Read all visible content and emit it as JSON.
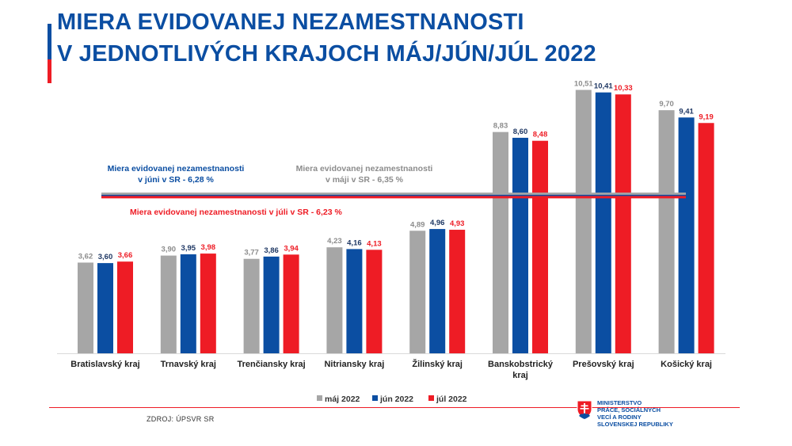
{
  "title": {
    "line1": "MIERA EVIDOVANEJ NEZAMESTNANOSTI",
    "line2": "V JEDNOTLIVÝCH KRAJOCH MÁJ/JÚN/JÚL 2022"
  },
  "colors": {
    "may": "#a6a6a6",
    "june": "#0b4ea2",
    "july": "#ee1c25",
    "may_label": "#8c8c8c",
    "june_label": "#1f3864",
    "july_label": "#ee1c25",
    "title": "#0b4ea2"
  },
  "chart_data": {
    "type": "bar",
    "title": "MIERA EVIDOVANEJ NEZAMESTNANOSTI V JEDNOTLIVÝCH KRAJOCH MÁJ/JÚN/JÚL 2022",
    "xlabel": "",
    "ylabel": "",
    "ylim": [
      0,
      11
    ],
    "grid": false,
    "legend_position": "bottom",
    "categories": [
      [
        "Bratislavský kraj"
      ],
      [
        "Trnavský kraj"
      ],
      [
        "Trenčiansky kraj"
      ],
      [
        "Nitriansky kraj"
      ],
      [
        "Žilinský kraj"
      ],
      [
        "Banskobstrický",
        "kraj"
      ],
      [
        "Prešovský kraj"
      ],
      [
        "Košický kraj"
      ]
    ],
    "series": [
      {
        "name": "máj 2022",
        "key": "may",
        "values": [
          3.62,
          3.9,
          3.77,
          4.23,
          4.89,
          8.83,
          10.51,
          9.7
        ],
        "labels": [
          "3,62",
          "3,90",
          "3,77",
          "4,23",
          "4,89",
          "8,83",
          "10,51",
          "9,70"
        ]
      },
      {
        "name": "jún 2022",
        "key": "june",
        "values": [
          3.6,
          3.95,
          3.86,
          4.16,
          4.96,
          8.6,
          10.41,
          9.41
        ],
        "labels": [
          "3,60",
          "3,95",
          "3,86",
          "4,16",
          "4,96",
          "8,60",
          "10,41",
          "9,41"
        ]
      },
      {
        "name": "júl 2022",
        "key": "july",
        "values": [
          3.66,
          3.98,
          3.94,
          4.13,
          4.93,
          8.48,
          10.33,
          9.19
        ],
        "labels": [
          "3,66",
          "3,98",
          "3,94",
          "4,13",
          "4,93",
          "8,48",
          "10,33",
          "9,19"
        ]
      }
    ],
    "reference_lines": [
      {
        "key": "may",
        "value": 6.35,
        "label": [
          "Miera evidovanej nezamestnanosti",
          "v máji v SR - 6,35 %"
        ]
      },
      {
        "key": "june",
        "value": 6.28,
        "label": [
          "Miera evidovanej nezamestnanosti",
          "v júni v SR - 6,28 %"
        ]
      },
      {
        "key": "july",
        "value": 6.23,
        "label": [
          "Miera evidovanej nezamestnanosti v júli v SR - 6,23 %"
        ]
      }
    ]
  },
  "footer": {
    "source": "ZDROJ: ÚPSVR SR",
    "ministry_lines": [
      "MINISTERSTVO",
      "PRÁCE, SOCIÁLNYCH",
      "VECÍ A RODINY",
      "SLOVENSKEJ REPUBLIKY"
    ]
  }
}
